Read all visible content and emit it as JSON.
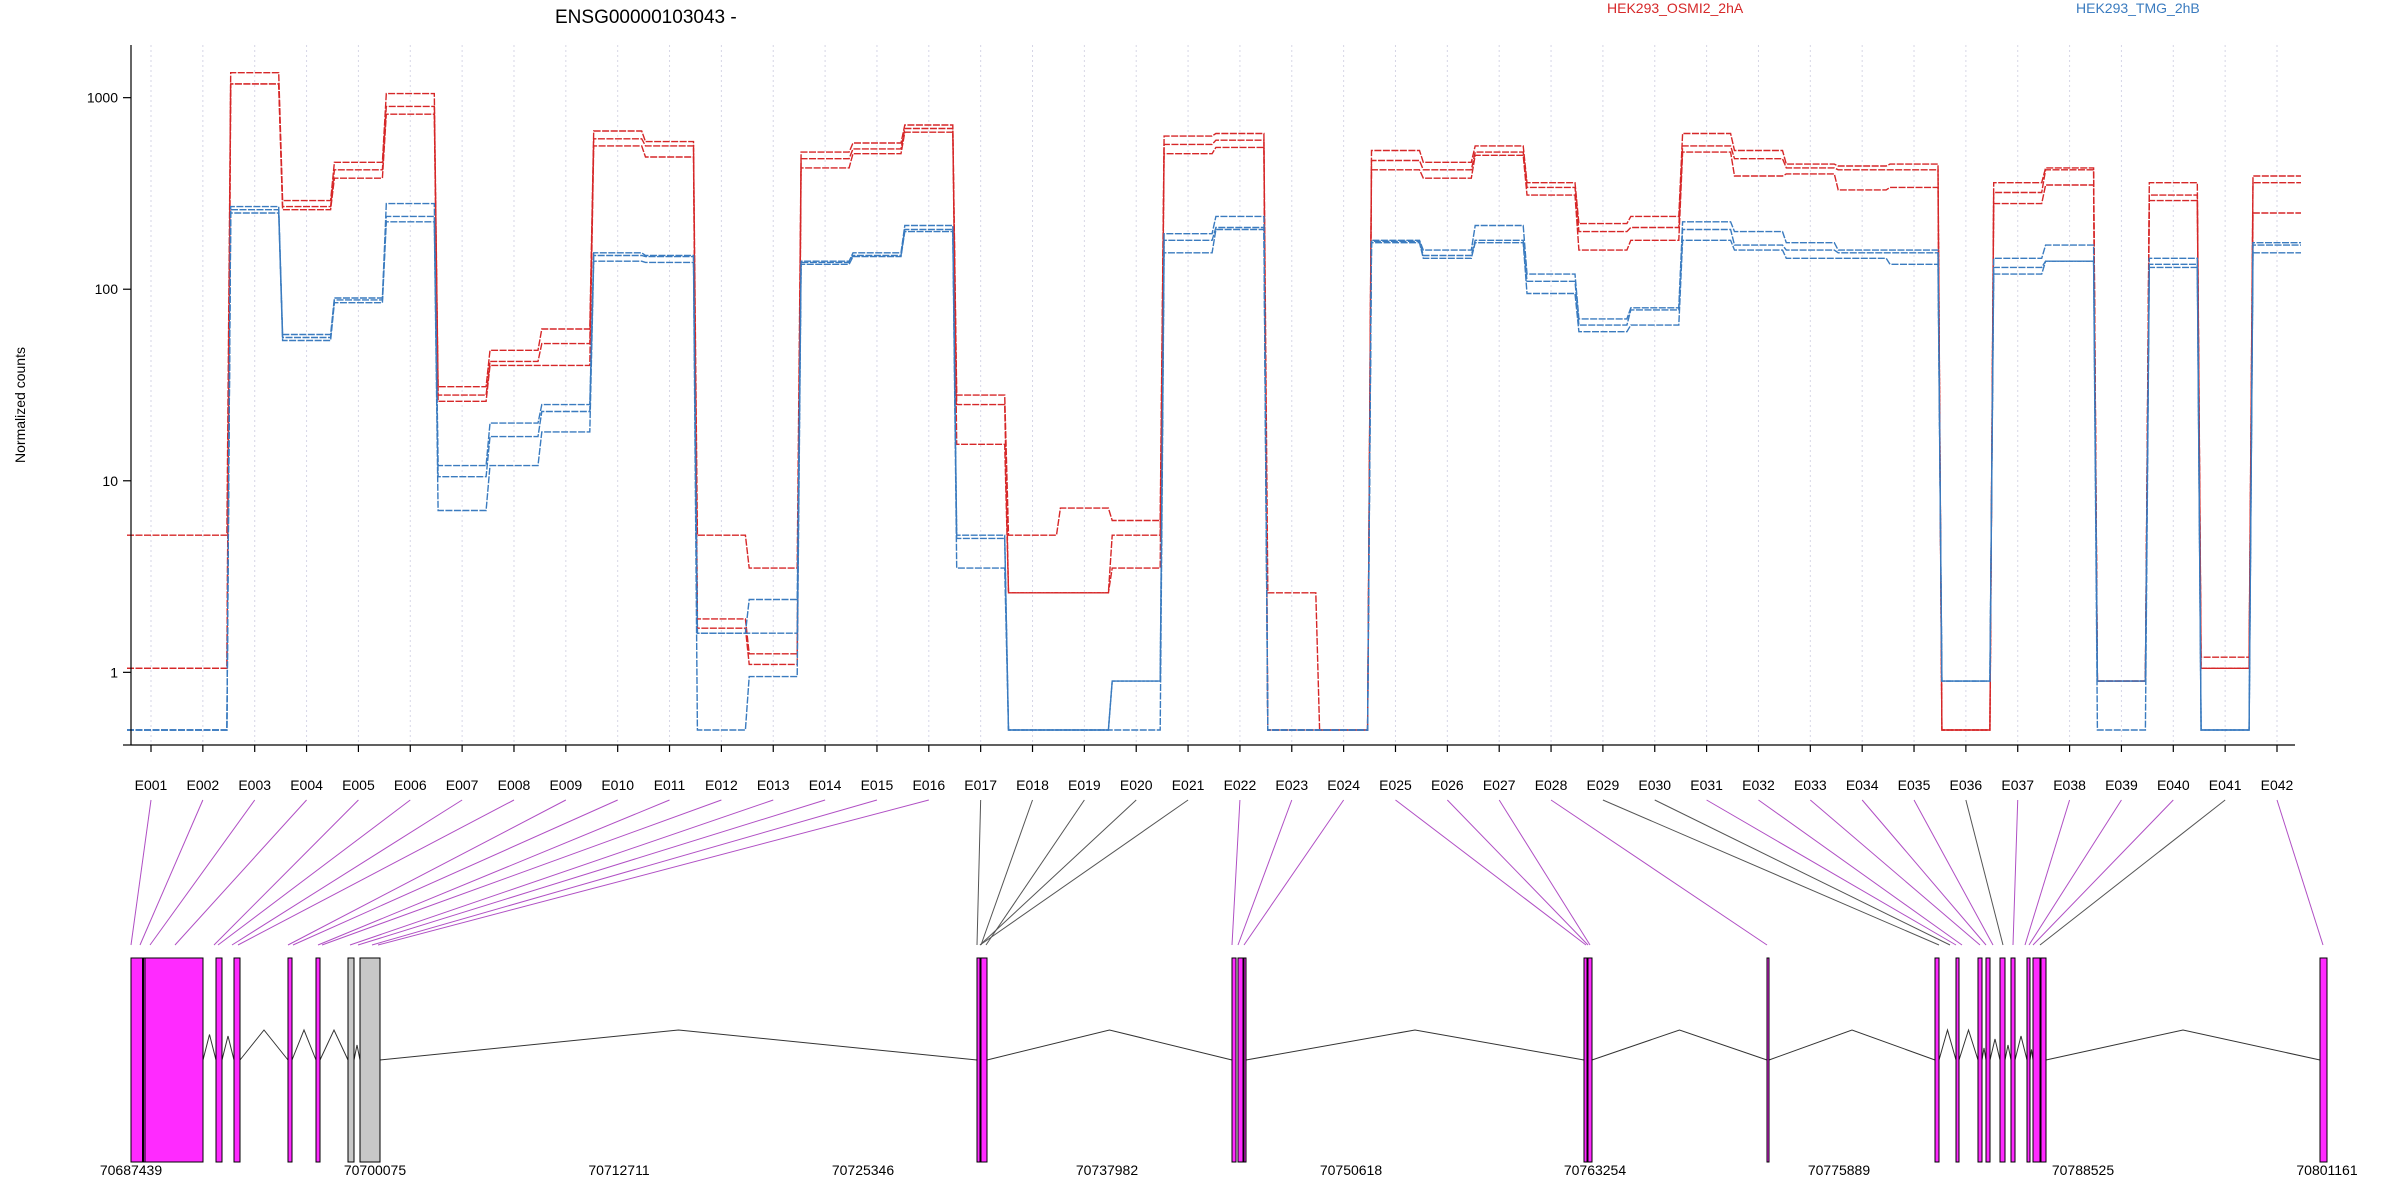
{
  "chart_data": {
    "type": "line",
    "title": "ENSG00000103043 -",
    "ylabel": "Normalized counts",
    "yscale": "log",
    "ylim": [
      0.5,
      2000
    ],
    "yticks": [
      "1",
      "10",
      "100",
      "1000"
    ],
    "grid": "vertical dotted lines at each exon",
    "legend_position": "top",
    "categories": [
      "E001",
      "E002",
      "E003",
      "E004",
      "E005",
      "E006",
      "E007",
      "E008",
      "E009",
      "E010",
      "E011",
      "E012",
      "E013",
      "E014",
      "E015",
      "E016",
      "E017",
      "E018",
      "E019",
      "E020",
      "E021",
      "E022",
      "E023",
      "E024",
      "E025",
      "E026",
      "E027",
      "E028",
      "E029",
      "E030",
      "E031",
      "E032",
      "E033",
      "E034",
      "E035",
      "E036",
      "E037",
      "E038",
      "E039",
      "E040",
      "E041",
      "E042"
    ],
    "series": [
      {
        "name": "HEK293_OSMI2_2hA",
        "color": "#d62728",
        "group": "HEK293_OSMI2_2hA",
        "values": [
          5.2,
          5.2,
          1350,
          290,
          460,
          1050,
          31,
          48,
          62,
          670,
          590,
          5.2,
          3.5,
          520,
          580,
          720,
          28,
          5.2,
          7.2,
          6.2,
          630,
          650,
          2.6,
          0.5,
          530,
          460,
          560,
          360,
          220,
          240,
          650,
          530,
          450,
          440,
          450,
          0.5,
          360,
          430,
          0.9,
          360,
          1.2,
          390
        ]
      },
      {
        "name": "HEK293_OSMI2_2hA",
        "color": "#d62728",
        "group": "HEK293_OSMI2_2hA",
        "values": [
          1.05,
          1.05,
          1180,
          270,
          420,
          900,
          28,
          42,
          52,
          610,
          560,
          1.9,
          1.25,
          480,
          540,
          690,
          25,
          2.6,
          2.6,
          5.2,
          570,
          600,
          0.5,
          0.5,
          470,
          420,
          520,
          340,
          200,
          210,
          560,
          480,
          430,
          420,
          420,
          0.5,
          320,
          420,
          0.9,
          310,
          1.05,
          360
        ]
      },
      {
        "name": "HEK293_OSMI2_2hA",
        "color": "#d62728",
        "group": "HEK293_OSMI2_2hA",
        "values": [
          1.05,
          1.05,
          1180,
          260,
          380,
          820,
          26,
          40,
          40,
          560,
          490,
          1.7,
          1.1,
          430,
          510,
          660,
          15.5,
          2.6,
          2.6,
          3.5,
          510,
          550,
          0.5,
          0.5,
          420,
          380,
          500,
          310,
          160,
          180,
          520,
          390,
          400,
          330,
          340,
          0.5,
          280,
          350,
          0.9,
          290,
          1.05,
          250
        ]
      },
      {
        "name": "HEK293_TMG_2hB",
        "color": "#3a7bbf",
        "group": "HEK293_TMG_2hB",
        "values": [
          0.5,
          0.5,
          270,
          58,
          90,
          280,
          12,
          20,
          25,
          155,
          150,
          1.6,
          2.4,
          140,
          155,
          215,
          5.2,
          0.5,
          0.5,
          0.9,
          195,
          240,
          0.5,
          0.5,
          180,
          160,
          215,
          120,
          70,
          80,
          225,
          200,
          175,
          160,
          160,
          0.9,
          145,
          170,
          0.9,
          145,
          0.5,
          175
        ]
      },
      {
        "name": "HEK293_TMG_2hB",
        "color": "#3a7bbf",
        "group": "HEK293_TMG_2hB",
        "values": [
          0.5,
          0.5,
          260,
          56,
          88,
          240,
          10.5,
          17,
          23,
          150,
          148,
          1.6,
          1.6,
          138,
          150,
          205,
          5.0,
          0.5,
          0.5,
          0.9,
          180,
          210,
          0.5,
          0.5,
          178,
          150,
          180,
          110,
          65,
          78,
          205,
          170,
          160,
          155,
          155,
          0.9,
          130,
          140,
          0.9,
          135,
          0.5,
          170
        ]
      },
      {
        "name": "HEK293_TMG_2hB",
        "color": "#3a7bbf",
        "group": "HEK293_TMG_2hB",
        "values": [
          0.5,
          0.5,
          250,
          54,
          85,
          225,
          7,
          12,
          18,
          140,
          138,
          0.5,
          0.95,
          135,
          148,
          200,
          3.5,
          0.5,
          0.5,
          0.5,
          155,
          205,
          0.5,
          0.5,
          175,
          145,
          175,
          95,
          60,
          65,
          180,
          160,
          145,
          145,
          135,
          0.9,
          120,
          140,
          0.5,
          130,
          0.5,
          155
        ]
      }
    ],
    "legend": [
      {
        "label": "HEK293_OSMI2_2hA",
        "color": "#d62728"
      },
      {
        "label": "HEK293_TMG_2hB",
        "color": "#3a7bbf"
      }
    ],
    "gene_model": {
      "coordinate_labels": [
        "70687439",
        "70700075",
        "70712711",
        "70725346",
        "70737982",
        "70750618",
        "70763254",
        "70775889",
        "70788525",
        "70801161"
      ],
      "exon_colors": {
        "tested": "#ff2aff",
        "not_tested": "#c8c8c8",
        "edge": "#000000"
      },
      "connector_colors": {
        "magenta": "#b04fc4",
        "gray": "#555555"
      }
    }
  }
}
